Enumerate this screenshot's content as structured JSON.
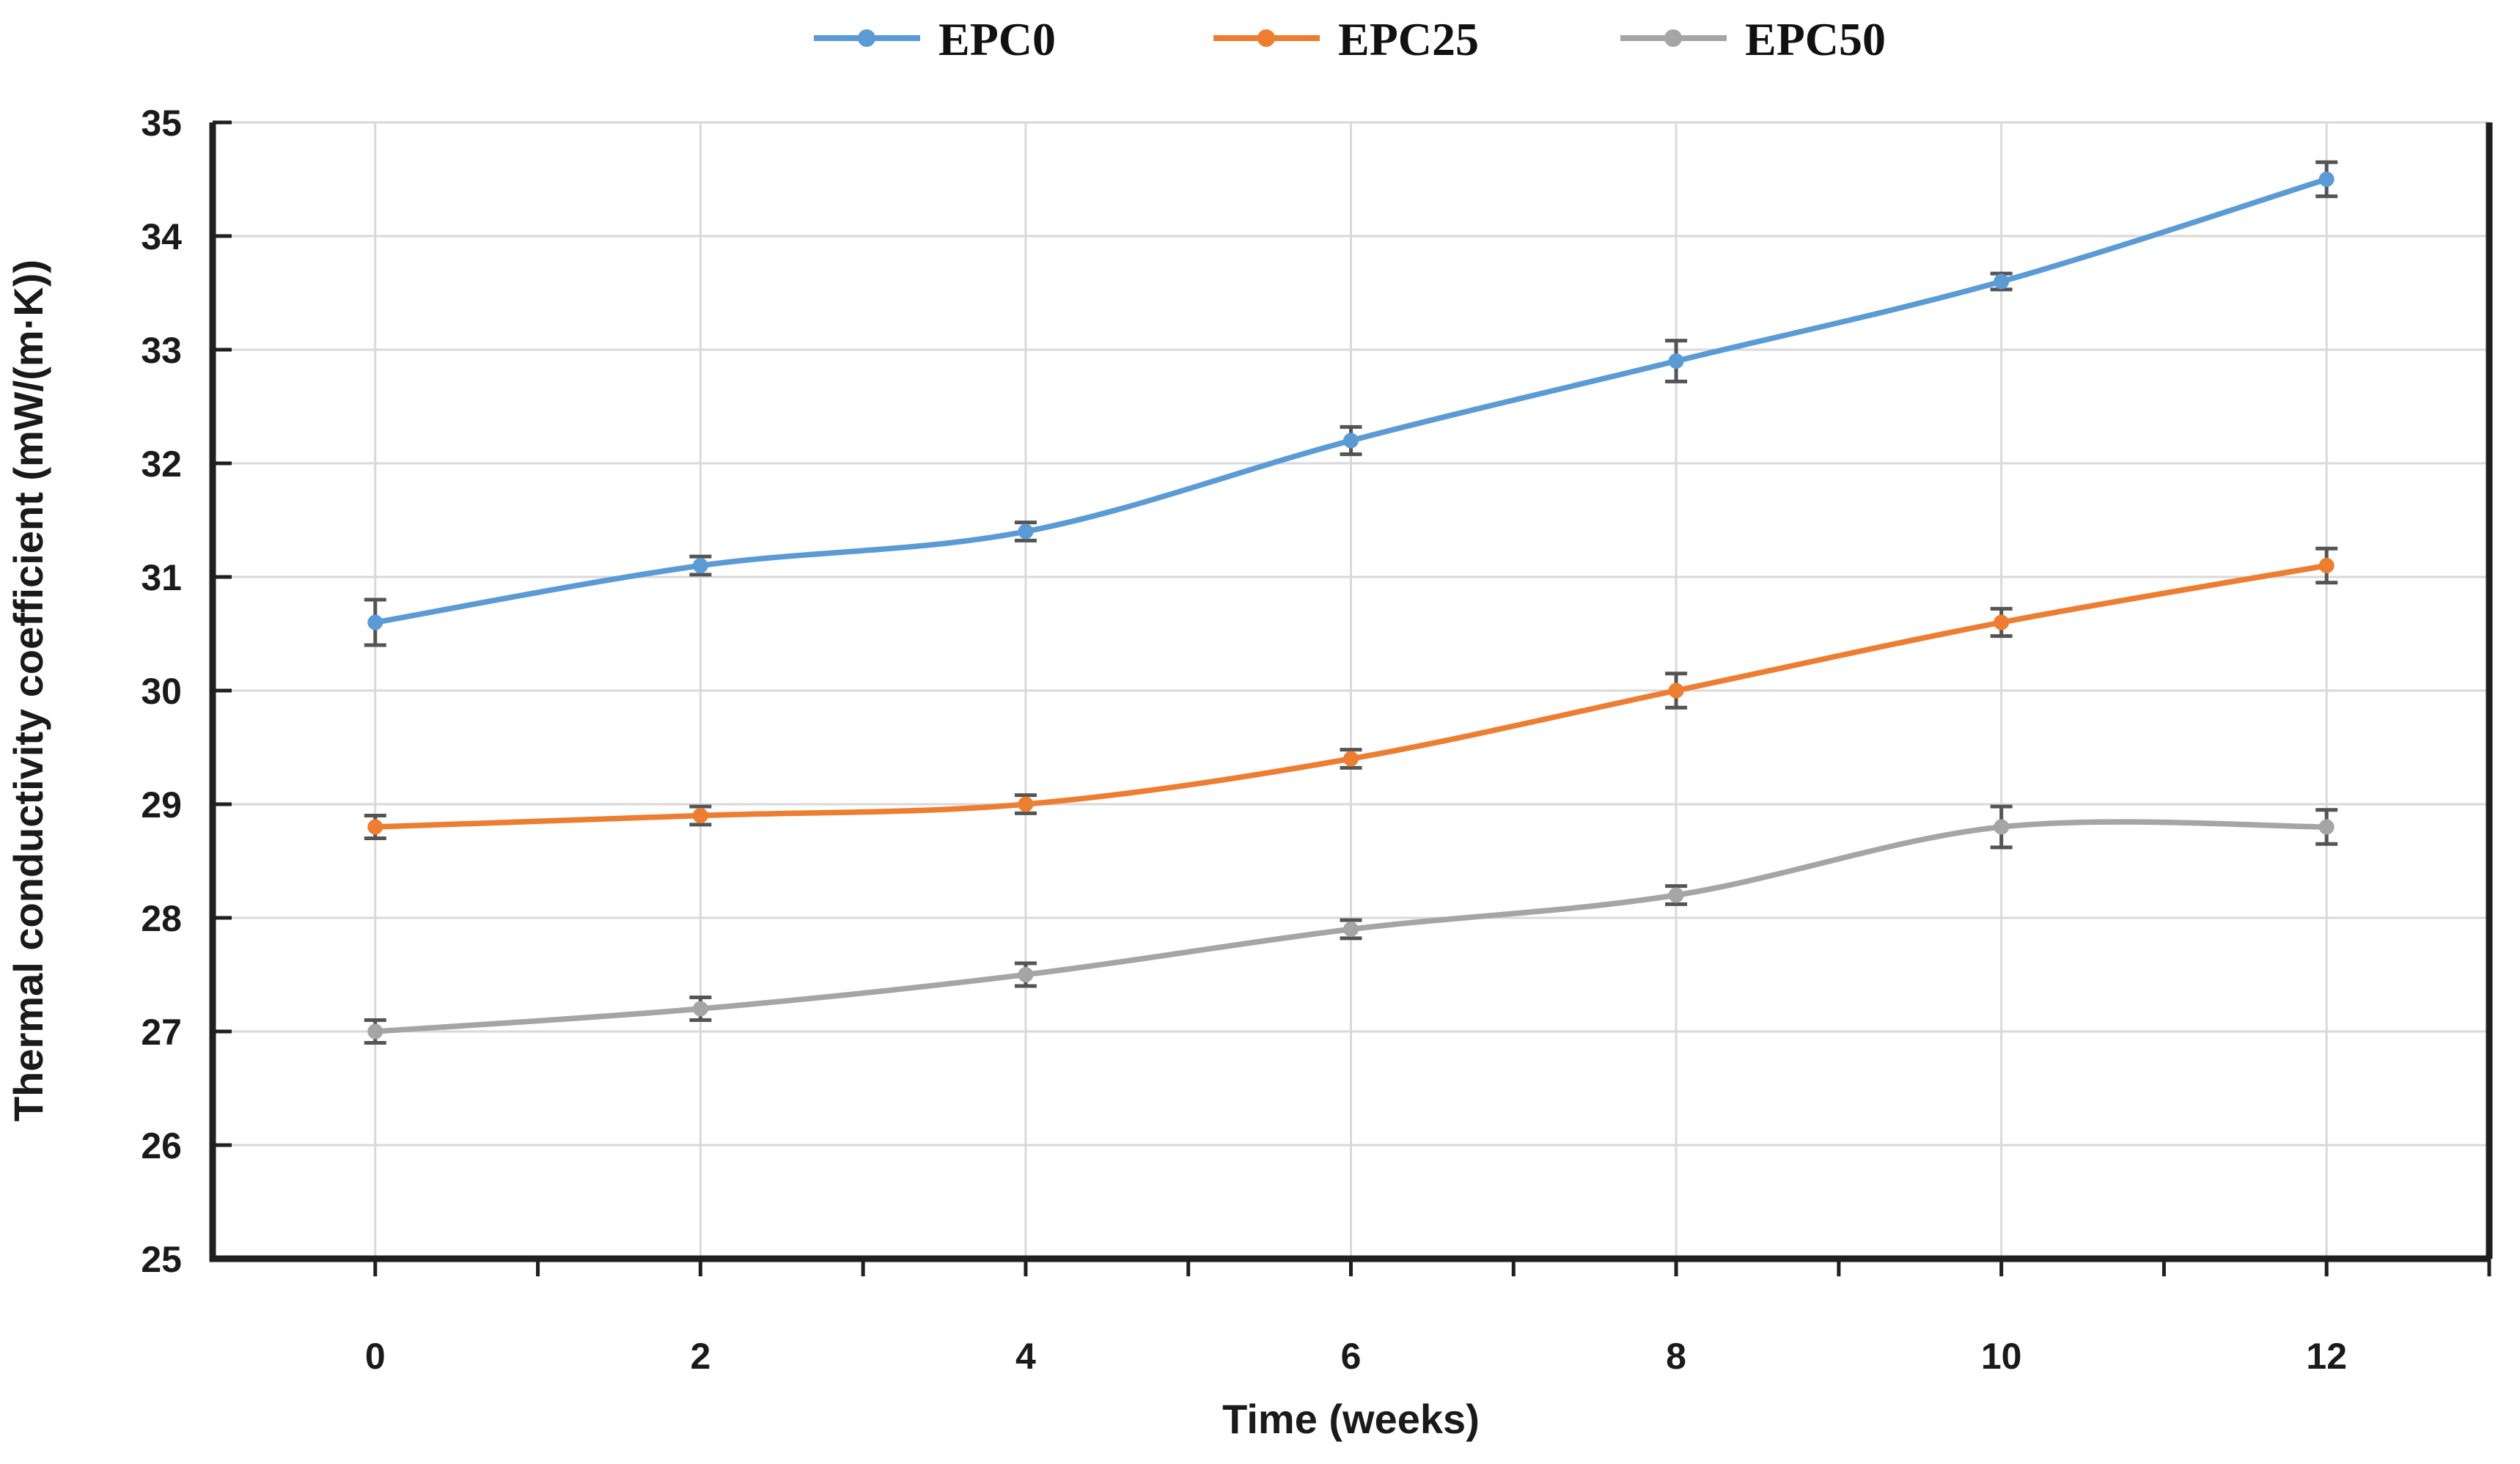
{
  "chart_data": {
    "type": "line",
    "title": "",
    "xlabel": "Time (weeks)",
    "ylabel": "Thermal conductivity coefficient (mW/(m·K))",
    "xlim": [
      -1,
      13
    ],
    "ylim": [
      25,
      35
    ],
    "x_ticks": [
      0,
      2,
      4,
      6,
      8,
      10,
      12
    ],
    "x_minor_tick_step": 1,
    "y_ticks": [
      25,
      26,
      27,
      28,
      29,
      30,
      31,
      32,
      33,
      34,
      35
    ],
    "grid": true,
    "smooth_lines": true,
    "error_bars": true,
    "legend_position": "top-center",
    "x": [
      0,
      2,
      4,
      6,
      8,
      10,
      12
    ],
    "series": [
      {
        "name": "EPC0",
        "color": "#5B9BD5",
        "values": [
          30.6,
          31.1,
          31.4,
          32.2,
          32.9,
          33.6,
          34.5
        ],
        "errors": [
          0.2,
          0.08,
          0.08,
          0.12,
          0.18,
          0.07,
          0.15
        ]
      },
      {
        "name": "EPC25",
        "color": "#ED7D31",
        "values": [
          28.8,
          28.9,
          29.0,
          29.4,
          30.0,
          30.6,
          31.1
        ],
        "errors": [
          0.1,
          0.08,
          0.08,
          0.08,
          0.15,
          0.12,
          0.15
        ]
      },
      {
        "name": "EPC50",
        "color": "#A5A5A5",
        "values": [
          27.0,
          27.2,
          27.5,
          27.9,
          28.2,
          28.8,
          28.8
        ],
        "errors": [
          0.1,
          0.1,
          0.1,
          0.08,
          0.08,
          0.18,
          0.15
        ]
      }
    ],
    "colors": {
      "background": "#FFFFFF",
      "gridline": "#D9D9D9",
      "axis": "#1F1F1F",
      "error_bar": "#545454",
      "text": "#1A1A1A"
    }
  }
}
